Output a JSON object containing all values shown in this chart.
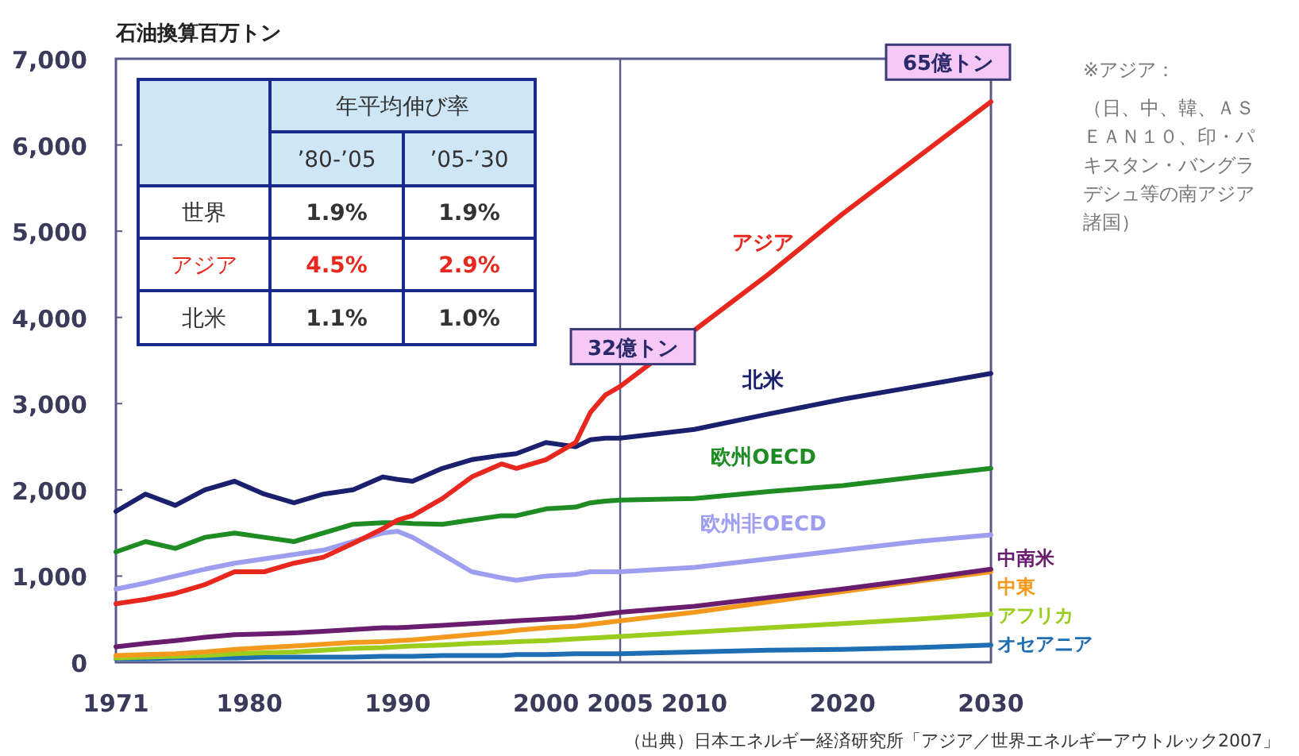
{
  "chart_data": {
    "type": "line",
    "ylabel": "石油換算百万トン",
    "xlim": [
      1971,
      2030
    ],
    "ylim": [
      0,
      7000
    ],
    "xticks": [
      1971,
      1980,
      1990,
      2000,
      2005,
      2010,
      2020,
      2030
    ],
    "yticks": [
      0,
      {
        "value": 1000,
        "label": "1,000"
      },
      {
        "value": 2000,
        "label": "2,000"
      },
      {
        "value": 3000,
        "label": "3,000"
      },
      {
        "value": 4000,
        "label": "4,000"
      },
      {
        "value": 5000,
        "label": "5,000"
      },
      {
        "value": 6000,
        "label": "6,000"
      },
      {
        "value": 7000,
        "label": "7,000"
      }
    ],
    "grid": false,
    "marker": "none",
    "line_style": "solid",
    "ref_lines": [
      {
        "axis": "x",
        "value": 2005,
        "label": null,
        "color": "#5a5a8a"
      }
    ],
    "x": [
      1971,
      1973,
      1975,
      1977,
      1979,
      1981,
      1983,
      1985,
      1987,
      1989,
      1990,
      1991,
      1993,
      1995,
      1997,
      1998,
      2000,
      2002,
      2003,
      2004,
      2005,
      2010,
      2015,
      2020,
      2025,
      2030
    ],
    "series": [
      {
        "name": "アジア",
        "color": "#e8281e",
        "values": [
          680,
          730,
          800,
          900,
          1050,
          1050,
          1150,
          1220,
          1380,
          1550,
          1650,
          1700,
          1900,
          2150,
          2300,
          2250,
          2350,
          2550,
          2900,
          3100,
          3200,
          3850,
          4500,
          5200,
          5850,
          6500
        ]
      },
      {
        "name": "北米",
        "color": "#1a1f6e",
        "values": [
          1750,
          1950,
          1820,
          2000,
          2100,
          1950,
          1850,
          1950,
          2000,
          2150,
          2120,
          2100,
          2250,
          2350,
          2400,
          2420,
          2550,
          2500,
          2580,
          2600,
          2600,
          2700,
          2880,
          3050,
          3200,
          3350
        ]
      },
      {
        "name": "欧州OECD",
        "color": "#1e8c23",
        "values": [
          1280,
          1400,
          1320,
          1450,
          1500,
          1450,
          1400,
          1500,
          1600,
          1620,
          1620,
          1610,
          1600,
          1650,
          1700,
          1700,
          1780,
          1800,
          1850,
          1870,
          1880,
          1900,
          1980,
          2050,
          2150,
          2250
        ]
      },
      {
        "name": "欧州非OECD",
        "color": "#9e9ef0",
        "values": [
          850,
          920,
          1000,
          1080,
          1150,
          1200,
          1250,
          1300,
          1400,
          1500,
          1520,
          1450,
          1250,
          1050,
          980,
          950,
          1000,
          1020,
          1050,
          1050,
          1050,
          1100,
          1200,
          1300,
          1400,
          1480
        ]
      },
      {
        "name": "中南米",
        "color": "#6a1d6e",
        "values": [
          180,
          220,
          250,
          290,
          320,
          330,
          340,
          360,
          380,
          400,
          400,
          410,
          430,
          450,
          470,
          480,
          500,
          520,
          540,
          560,
          580,
          650,
          750,
          850,
          960,
          1080
        ]
      },
      {
        "name": "中東",
        "color": "#f39a1e",
        "values": [
          80,
          90,
          100,
          120,
          150,
          170,
          190,
          210,
          230,
          240,
          250,
          260,
          290,
          320,
          350,
          370,
          400,
          420,
          440,
          460,
          480,
          580,
          700,
          820,
          940,
          1050
        ]
      },
      {
        "name": "アフリカ",
        "color": "#9acd1e",
        "values": [
          50,
          60,
          70,
          80,
          100,
          110,
          120,
          140,
          160,
          170,
          180,
          190,
          200,
          220,
          230,
          240,
          250,
          270,
          280,
          290,
          300,
          350,
          400,
          450,
          500,
          560
        ]
      },
      {
        "name": "オセアニア",
        "color": "#1e6eb4",
        "values": [
          40,
          40,
          50,
          50,
          50,
          60,
          60,
          60,
          60,
          70,
          70,
          70,
          80,
          80,
          80,
          90,
          90,
          100,
          100,
          100,
          100,
          120,
          140,
          150,
          170,
          200
        ]
      }
    ],
    "annotations": [
      "年平均伸び率",
      "’80-’05",
      "’05-’30",
      "世界",
      "1.9%",
      "1.9%",
      "アジア",
      "4.5%",
      "2.9%",
      "北米",
      "1.1%",
      "1.0%",
      "※アジア：",
      "（日、中、韓、ＡＳＥＡＮ１０、印・パキスタン・バングラデシュ等の南アジア諸国）",
      "（出典）日本エネルギー経済研究所「アジア／世界エネルギーアウトルック2007」",
      {
        "text": "32億トン",
        "x": 2005,
        "y": 3200
      },
      {
        "text": "65億トン",
        "x": 2030,
        "y": 6500
      }
    ]
  }
}
